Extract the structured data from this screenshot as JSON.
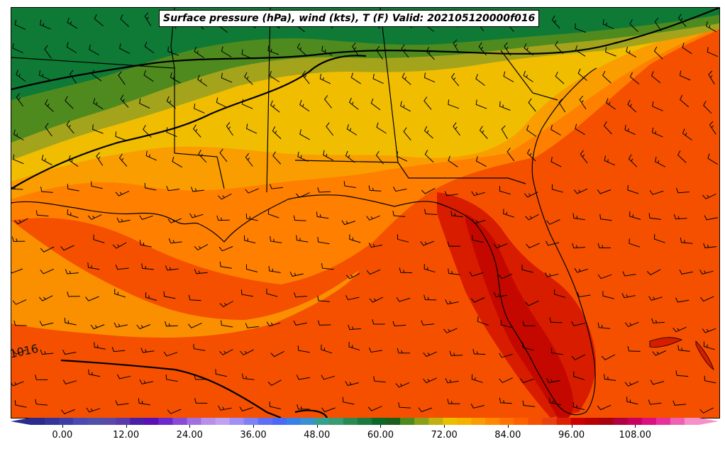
{
  "title": "Surface pressure (hPa), wind (kts), T (F) Valid: 202105120000f016",
  "contour_label": "1016",
  "colorbar": {
    "ticks": [
      "0.00",
      "12.00",
      "24.00",
      "36.00",
      "48.00",
      "60.00",
      "72.00",
      "84.00",
      "96.00",
      "108.00"
    ],
    "tick_values": [
      0,
      12,
      24,
      36,
      48,
      60,
      72,
      84,
      96,
      108
    ],
    "min": -6,
    "max": 120,
    "step": 2.5,
    "colors": [
      "#2b2b8c",
      "#34349a",
      "#3d3da6",
      "#4a4ab2",
      "#5050a8",
      "#5a4aa8",
      "#5a3aa8",
      "#4a20a8",
      "#5a10b8",
      "#6a2acb",
      "#8a4ad6",
      "#a070e0",
      "#b890ea",
      "#c0a0f0",
      "#a090f5",
      "#8080f5",
      "#6070f5",
      "#4a6af5",
      "#3a80e8",
      "#3a90d0",
      "#35a090",
      "#3a9a70",
      "#2a8a50",
      "#1a7a40",
      "#0a6a2a",
      "#1a5f1a",
      "#4f8a1f",
      "#8aa01a",
      "#c0b010",
      "#e8c000",
      "#f5b000",
      "#fa9d00",
      "#ff8800",
      "#ff7300",
      "#ff6000",
      "#f55000",
      "#e84010",
      "#dc2000",
      "#cc0000",
      "#b80000",
      "#a80010",
      "#b00040",
      "#c80060",
      "#dc1080",
      "#e8309a",
      "#f060b0",
      "#f890c8"
    ]
  },
  "colors": {
    "green_dark": "#0e7a36",
    "green": "#4f8a1f",
    "olive": "#a3a41b",
    "yellow": "#f0bd00",
    "orange_light": "#fa9d00",
    "orange": "#ff7f00",
    "orange_red": "#f55000",
    "red": "#d81c00",
    "dark_red": "#c40800"
  }
}
